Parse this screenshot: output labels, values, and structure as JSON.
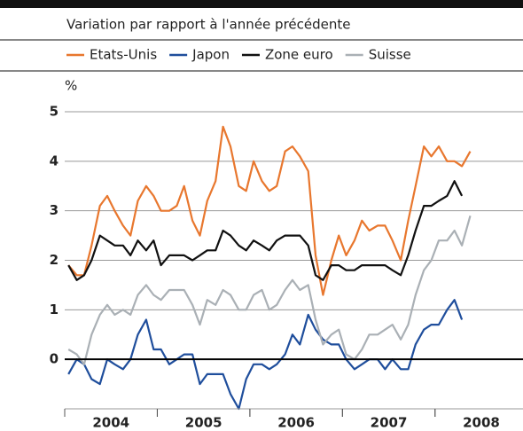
{
  "chart_data": {
    "type": "line",
    "subtitle": "Variation par rapport à l'année précédente",
    "y_unit": "%",
    "x": [
      2004.04,
      2004.13,
      2004.21,
      2004.29,
      2004.38,
      2004.46,
      2004.54,
      2004.63,
      2004.71,
      2004.79,
      2004.88,
      2004.96,
      2005.04,
      2005.13,
      2005.21,
      2005.29,
      2005.38,
      2005.46,
      2005.54,
      2005.63,
      2005.71,
      2005.79,
      2005.88,
      2005.96,
      2006.04,
      2006.13,
      2006.21,
      2006.29,
      2006.38,
      2006.46,
      2006.54,
      2006.63,
      2006.71,
      2006.79,
      2006.88,
      2006.96,
      2007.04,
      2007.13,
      2007.21,
      2007.29,
      2007.38,
      2007.46,
      2007.54,
      2007.63,
      2007.71,
      2007.79,
      2007.88,
      2007.96,
      2008.04,
      2008.13,
      2008.21,
      2008.29,
      2008.38
    ],
    "series": [
      {
        "name": "Etats-Unis",
        "color": "#e8772e",
        "values": [
          1.9,
          1.7,
          1.7,
          2.3,
          3.1,
          3.3,
          3.0,
          2.7,
          2.5,
          3.2,
          3.5,
          3.3,
          3.0,
          3.0,
          3.1,
          3.5,
          2.8,
          2.5,
          3.2,
          3.6,
          4.7,
          4.3,
          3.5,
          3.4,
          4.0,
          3.6,
          3.4,
          3.5,
          4.2,
          4.3,
          4.1,
          3.8,
          2.1,
          1.3,
          2.0,
          2.5,
          2.1,
          2.4,
          2.8,
          2.6,
          2.7,
          2.7,
          2.4,
          2.0,
          2.8,
          3.5,
          4.3,
          4.1,
          4.3,
          4.0,
          4.0,
          3.9,
          4.2
        ]
      },
      {
        "name": "Japon",
        "color": "#1f4e9c",
        "values": [
          -0.3,
          0.0,
          -0.1,
          -0.4,
          -0.5,
          0.0,
          -0.1,
          -0.2,
          0.0,
          0.5,
          0.8,
          0.2,
          0.2,
          -0.1,
          0.0,
          0.1,
          0.1,
          -0.5,
          -0.3,
          -0.3,
          -0.3,
          -0.7,
          -1.0,
          -0.4,
          -0.1,
          -0.1,
          -0.2,
          -0.1,
          0.1,
          0.5,
          0.3,
          0.9,
          0.6,
          0.4,
          0.3,
          0.3,
          0.0,
          -0.2,
          -0.1,
          0.0,
          0.0,
          -0.2,
          0.0,
          -0.2,
          -0.2,
          0.3,
          0.6,
          0.7,
          0.7,
          1.0,
          1.2,
          0.8,
          null
        ]
      },
      {
        "name": "Zone euro",
        "color": "#111111",
        "values": [
          1.9,
          1.6,
          1.7,
          2.0,
          2.5,
          2.4,
          2.3,
          2.3,
          2.1,
          2.4,
          2.2,
          2.4,
          1.9,
          2.1,
          2.1,
          2.1,
          2.0,
          2.1,
          2.2,
          2.2,
          2.6,
          2.5,
          2.3,
          2.2,
          2.4,
          2.3,
          2.2,
          2.4,
          2.5,
          2.5,
          2.5,
          2.3,
          1.7,
          1.6,
          1.9,
          1.9,
          1.8,
          1.8,
          1.9,
          1.9,
          1.9,
          1.9,
          1.8,
          1.7,
          2.1,
          2.6,
          3.1,
          3.1,
          3.2,
          3.3,
          3.6,
          3.3,
          null
        ]
      },
      {
        "name": "Suisse",
        "color": "#aab0b5",
        "values": [
          0.2,
          0.1,
          -0.1,
          0.5,
          0.9,
          1.1,
          0.9,
          1.0,
          0.9,
          1.3,
          1.5,
          1.3,
          1.2,
          1.4,
          1.4,
          1.4,
          1.1,
          0.7,
          1.2,
          1.1,
          1.4,
          1.3,
          1.0,
          1.0,
          1.3,
          1.4,
          1.0,
          1.1,
          1.4,
          1.6,
          1.4,
          1.5,
          0.8,
          0.3,
          0.5,
          0.6,
          0.1,
          0.0,
          0.2,
          0.5,
          0.5,
          0.6,
          0.7,
          0.4,
          0.7,
          1.3,
          1.8,
          2.0,
          2.4,
          2.4,
          2.6,
          2.3,
          2.9
        ]
      }
    ],
    "xlim": [
      2004,
      2008.95
    ],
    "xticks": [
      {
        "value": 2004.5,
        "label": "2004"
      },
      {
        "value": 2005.5,
        "label": "2005"
      },
      {
        "value": 2006.5,
        "label": "2006"
      },
      {
        "value": 2007.5,
        "label": "2007"
      },
      {
        "value": 2008.5,
        "label": "2008"
      }
    ],
    "ylim": [
      -1,
      5
    ],
    "yticks": [
      0,
      1,
      2,
      3,
      4,
      5
    ],
    "grid": true
  }
}
